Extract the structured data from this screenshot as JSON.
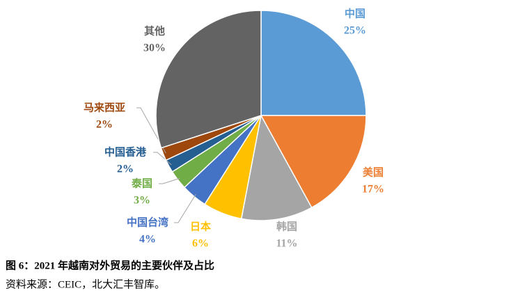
{
  "chart_data": {
    "type": "pie",
    "title": "图 6：2021 年越南对外贸易的主要伙伴及占比",
    "source": "资料来源：CEIC，北大汇丰智库。",
    "categories": [
      "中国",
      "美国",
      "韩国",
      "日本",
      "中国台湾",
      "泰国",
      "中国香港",
      "马来西亚",
      "其他"
    ],
    "values": [
      25,
      17,
      11,
      6,
      4,
      3,
      2,
      2,
      30
    ],
    "value_labels": [
      "25%",
      "17%",
      "11%",
      "6%",
      "4%",
      "3%",
      "2%",
      "2%",
      "30%"
    ],
    "colors": [
      "#5b9bd5",
      "#ed7d31",
      "#a5a5a5",
      "#ffc000",
      "#4472c4",
      "#70ad47",
      "#255e91",
      "#9e480e",
      "#636363"
    ]
  }
}
